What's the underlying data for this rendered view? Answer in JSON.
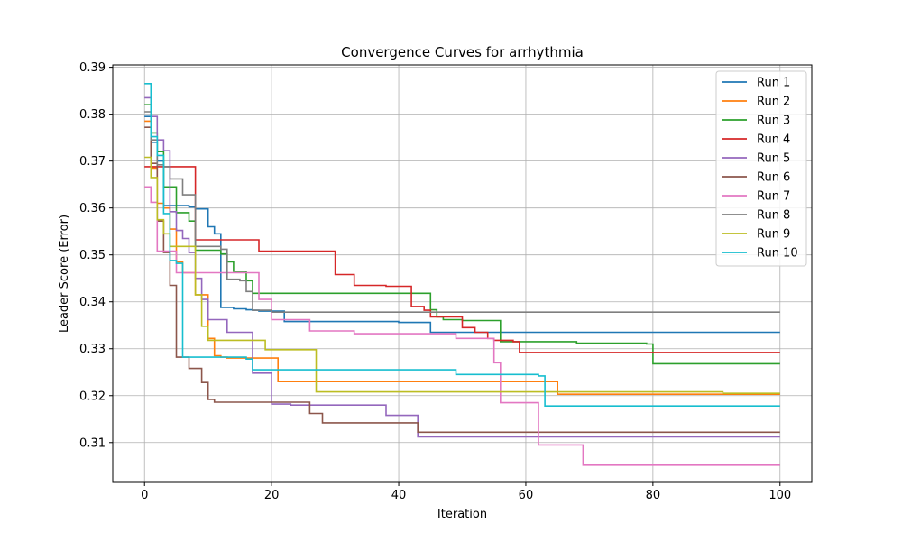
{
  "chart_data": {
    "type": "line",
    "title": "Convergence Curves for arrhythmia",
    "xlabel": "Iteration",
    "ylabel": "Leader Score (Error)",
    "xlim": [
      -5,
      105
    ],
    "ylim": [
      0.3015,
      0.3905
    ],
    "x_ticks": [
      0,
      20,
      40,
      60,
      80,
      100
    ],
    "y_ticks": [
      0.31,
      0.32,
      0.33,
      0.34,
      0.35,
      0.36,
      0.37,
      0.38,
      0.39
    ],
    "grid": true,
    "legend_position": "top-right",
    "step_interpolation": "steps-post",
    "series": [
      {
        "name": "Run 1",
        "color": "#1f77b4",
        "points": [
          [
            0,
            0.3795
          ],
          [
            1,
            0.374
          ],
          [
            2,
            0.37
          ],
          [
            3,
            0.3605
          ],
          [
            4,
            0.3605
          ],
          [
            5,
            0.3605
          ],
          [
            6,
            0.3605
          ],
          [
            7,
            0.3602
          ],
          [
            8,
            0.3598
          ],
          [
            9,
            0.3598
          ],
          [
            10,
            0.356
          ],
          [
            11,
            0.3545
          ],
          [
            12,
            0.3388
          ],
          [
            13,
            0.3388
          ],
          [
            14,
            0.3385
          ],
          [
            15,
            0.3385
          ],
          [
            16,
            0.3383
          ],
          [
            17,
            0.3382
          ],
          [
            18,
            0.338
          ],
          [
            19,
            0.338
          ],
          [
            20,
            0.338
          ],
          [
            21,
            0.338
          ],
          [
            22,
            0.3358
          ],
          [
            30,
            0.3358
          ],
          [
            40,
            0.3356
          ],
          [
            43,
            0.3356
          ],
          [
            45,
            0.3335
          ],
          [
            100,
            0.3335
          ]
        ]
      },
      {
        "name": "Run 2",
        "color": "#ff7f0e",
        "points": [
          [
            0,
            0.3785
          ],
          [
            1,
            0.3685
          ],
          [
            2,
            0.361
          ],
          [
            3,
            0.36
          ],
          [
            4,
            0.3555
          ],
          [
            5,
            0.3485
          ],
          [
            6,
            0.3462
          ],
          [
            7,
            0.3462
          ],
          [
            8,
            0.3415
          ],
          [
            9,
            0.3415
          ],
          [
            10,
            0.3322
          ],
          [
            11,
            0.3285
          ],
          [
            12,
            0.3282
          ],
          [
            13,
            0.328
          ],
          [
            14,
            0.328
          ],
          [
            15,
            0.328
          ],
          [
            16,
            0.328
          ],
          [
            17,
            0.328
          ],
          [
            18,
            0.328
          ],
          [
            19,
            0.328
          ],
          [
            20,
            0.328
          ],
          [
            21,
            0.323
          ],
          [
            30,
            0.323
          ],
          [
            40,
            0.323
          ],
          [
            50,
            0.323
          ],
          [
            60,
            0.323
          ],
          [
            64,
            0.323
          ],
          [
            65,
            0.3203
          ],
          [
            100,
            0.3203
          ]
        ]
      },
      {
        "name": "Run 3",
        "color": "#2ca02c",
        "points": [
          [
            0,
            0.382
          ],
          [
            1,
            0.376
          ],
          [
            2,
            0.372
          ],
          [
            3,
            0.3645
          ],
          [
            4,
            0.3645
          ],
          [
            5,
            0.359
          ],
          [
            6,
            0.359
          ],
          [
            7,
            0.3572
          ],
          [
            8,
            0.351
          ],
          [
            9,
            0.351
          ],
          [
            10,
            0.351
          ],
          [
            11,
            0.351
          ],
          [
            12,
            0.3502
          ],
          [
            13,
            0.3485
          ],
          [
            14,
            0.3465
          ],
          [
            15,
            0.3465
          ],
          [
            16,
            0.3445
          ],
          [
            17,
            0.3418
          ],
          [
            20,
            0.3418
          ],
          [
            30,
            0.3418
          ],
          [
            40,
            0.3418
          ],
          [
            44,
            0.3418
          ],
          [
            45,
            0.3383
          ],
          [
            46,
            0.3368
          ],
          [
            47,
            0.3362
          ],
          [
            50,
            0.336
          ],
          [
            55,
            0.336
          ],
          [
            56,
            0.3315
          ],
          [
            60,
            0.3315
          ],
          [
            67,
            0.3315
          ],
          [
            68,
            0.3312
          ],
          [
            79,
            0.331
          ],
          [
            80,
            0.3268
          ],
          [
            100,
            0.3268
          ]
        ]
      },
      {
        "name": "Run 4",
        "color": "#d62728",
        "points": [
          [
            0,
            0.3688
          ],
          [
            5,
            0.3688
          ],
          [
            6,
            0.3688
          ],
          [
            7,
            0.3688
          ],
          [
            8,
            0.3532
          ],
          [
            10,
            0.3532
          ],
          [
            15,
            0.3532
          ],
          [
            17,
            0.3532
          ],
          [
            18,
            0.3508
          ],
          [
            20,
            0.3508
          ],
          [
            29,
            0.3508
          ],
          [
            30,
            0.3458
          ],
          [
            32,
            0.3458
          ],
          [
            33,
            0.3435
          ],
          [
            37,
            0.3435
          ],
          [
            38,
            0.3433
          ],
          [
            40,
            0.3433
          ],
          [
            42,
            0.339
          ],
          [
            43,
            0.339
          ],
          [
            44,
            0.3382
          ],
          [
            45,
            0.3368
          ],
          [
            49,
            0.3368
          ],
          [
            50,
            0.3345
          ],
          [
            51,
            0.3345
          ],
          [
            52,
            0.3335
          ],
          [
            54,
            0.3322
          ],
          [
            55,
            0.3318
          ],
          [
            57,
            0.3318
          ],
          [
            58,
            0.3315
          ],
          [
            59,
            0.3292
          ],
          [
            100,
            0.3292
          ]
        ]
      },
      {
        "name": "Run 5",
        "color": "#9467bd",
        "points": [
          [
            0,
            0.3835
          ],
          [
            1,
            0.3795
          ],
          [
            2,
            0.3745
          ],
          [
            3,
            0.3722
          ],
          [
            4,
            0.3592
          ],
          [
            5,
            0.3552
          ],
          [
            6,
            0.3535
          ],
          [
            7,
            0.3505
          ],
          [
            8,
            0.345
          ],
          [
            9,
            0.3405
          ],
          [
            10,
            0.3362
          ],
          [
            12,
            0.3362
          ],
          [
            13,
            0.3335
          ],
          [
            16,
            0.3335
          ],
          [
            17,
            0.3248
          ],
          [
            19,
            0.3248
          ],
          [
            20,
            0.3182
          ],
          [
            22,
            0.3182
          ],
          [
            23,
            0.318
          ],
          [
            30,
            0.318
          ],
          [
            37,
            0.318
          ],
          [
            38,
            0.3158
          ],
          [
            42,
            0.3158
          ],
          [
            43,
            0.3112
          ],
          [
            100,
            0.3112
          ]
        ]
      },
      {
        "name": "Run 6",
        "color": "#8c564b",
        "points": [
          [
            0,
            0.3772
          ],
          [
            1,
            0.3695
          ],
          [
            2,
            0.3572
          ],
          [
            3,
            0.3505
          ],
          [
            4,
            0.3435
          ],
          [
            5,
            0.3282
          ],
          [
            6,
            0.3282
          ],
          [
            7,
            0.3258
          ],
          [
            8,
            0.3258
          ],
          [
            9,
            0.3228
          ],
          [
            10,
            0.3192
          ],
          [
            11,
            0.3186
          ],
          [
            15,
            0.3186
          ],
          [
            20,
            0.3186
          ],
          [
            25,
            0.3186
          ],
          [
            26,
            0.3162
          ],
          [
            27,
            0.3162
          ],
          [
            28,
            0.3142
          ],
          [
            29,
            0.3142
          ],
          [
            30,
            0.3142
          ],
          [
            40,
            0.3142
          ],
          [
            42,
            0.3142
          ],
          [
            43,
            0.3122
          ],
          [
            100,
            0.3122
          ]
        ]
      },
      {
        "name": "Run 7",
        "color": "#e377c2",
        "points": [
          [
            0,
            0.3645
          ],
          [
            1,
            0.3612
          ],
          [
            2,
            0.3508
          ],
          [
            3,
            0.3508
          ],
          [
            4,
            0.3508
          ],
          [
            5,
            0.3462
          ],
          [
            6,
            0.3462
          ],
          [
            7,
            0.3462
          ],
          [
            8,
            0.3462
          ],
          [
            10,
            0.3462
          ],
          [
            17,
            0.3462
          ],
          [
            18,
            0.3405
          ],
          [
            19,
            0.3405
          ],
          [
            20,
            0.3362
          ],
          [
            22,
            0.3362
          ],
          [
            25,
            0.3362
          ],
          [
            26,
            0.3338
          ],
          [
            30,
            0.3338
          ],
          [
            33,
            0.3332
          ],
          [
            40,
            0.3332
          ],
          [
            48,
            0.3332
          ],
          [
            49,
            0.3322
          ],
          [
            54,
            0.3322
          ],
          [
            55,
            0.327
          ],
          [
            56,
            0.3185
          ],
          [
            61,
            0.3185
          ],
          [
            62,
            0.3095
          ],
          [
            68,
            0.3095
          ],
          [
            69,
            0.3052
          ],
          [
            100,
            0.3052
          ]
        ]
      },
      {
        "name": "Run 8",
        "color": "#7f7f7f",
        "points": [
          [
            0,
            0.3805
          ],
          [
            1,
            0.3745
          ],
          [
            2,
            0.3692
          ],
          [
            3,
            0.3688
          ],
          [
            4,
            0.3662
          ],
          [
            5,
            0.3662
          ],
          [
            6,
            0.3628
          ],
          [
            7,
            0.3628
          ],
          [
            8,
            0.3518
          ],
          [
            10,
            0.3518
          ],
          [
            11,
            0.3518
          ],
          [
            12,
            0.3512
          ],
          [
            13,
            0.3448
          ],
          [
            14,
            0.3448
          ],
          [
            15,
            0.3445
          ],
          [
            16,
            0.3422
          ],
          [
            17,
            0.3382
          ],
          [
            20,
            0.3378
          ],
          [
            40,
            0.3378
          ],
          [
            60,
            0.3378
          ],
          [
            80,
            0.3378
          ],
          [
            100,
            0.3378
          ]
        ]
      },
      {
        "name": "Run 9",
        "color": "#bcbd22",
        "points": [
          [
            0,
            0.3708
          ],
          [
            1,
            0.3665
          ],
          [
            2,
            0.3575
          ],
          [
            3,
            0.3545
          ],
          [
            4,
            0.3518
          ],
          [
            5,
            0.3518
          ],
          [
            6,
            0.3518
          ],
          [
            7,
            0.3518
          ],
          [
            8,
            0.3415
          ],
          [
            9,
            0.3348
          ],
          [
            10,
            0.3318
          ],
          [
            15,
            0.3318
          ],
          [
            18,
            0.3318
          ],
          [
            19,
            0.3298
          ],
          [
            25,
            0.3298
          ],
          [
            26,
            0.3298
          ],
          [
            27,
            0.3208
          ],
          [
            30,
            0.3208
          ],
          [
            40,
            0.3208
          ],
          [
            50,
            0.3208
          ],
          [
            60,
            0.3208
          ],
          [
            70,
            0.3208
          ],
          [
            90,
            0.3208
          ],
          [
            91,
            0.3205
          ],
          [
            100,
            0.3205
          ]
        ]
      },
      {
        "name": "Run 10",
        "color": "#17becf",
        "points": [
          [
            0,
            0.3865
          ],
          [
            1,
            0.3752
          ],
          [
            2,
            0.3712
          ],
          [
            3,
            0.3588
          ],
          [
            4,
            0.3488
          ],
          [
            5,
            0.3482
          ],
          [
            6,
            0.3282
          ],
          [
            7,
            0.3282
          ],
          [
            10,
            0.3282
          ],
          [
            15,
            0.3282
          ],
          [
            16,
            0.3278
          ],
          [
            17,
            0.3255
          ],
          [
            20,
            0.3255
          ],
          [
            30,
            0.3255
          ],
          [
            40,
            0.3255
          ],
          [
            48,
            0.3255
          ],
          [
            49,
            0.3245
          ],
          [
            55,
            0.3245
          ],
          [
            61,
            0.3245
          ],
          [
            62,
            0.3242
          ],
          [
            63,
            0.3178
          ],
          [
            100,
            0.3178
          ]
        ]
      }
    ]
  }
}
